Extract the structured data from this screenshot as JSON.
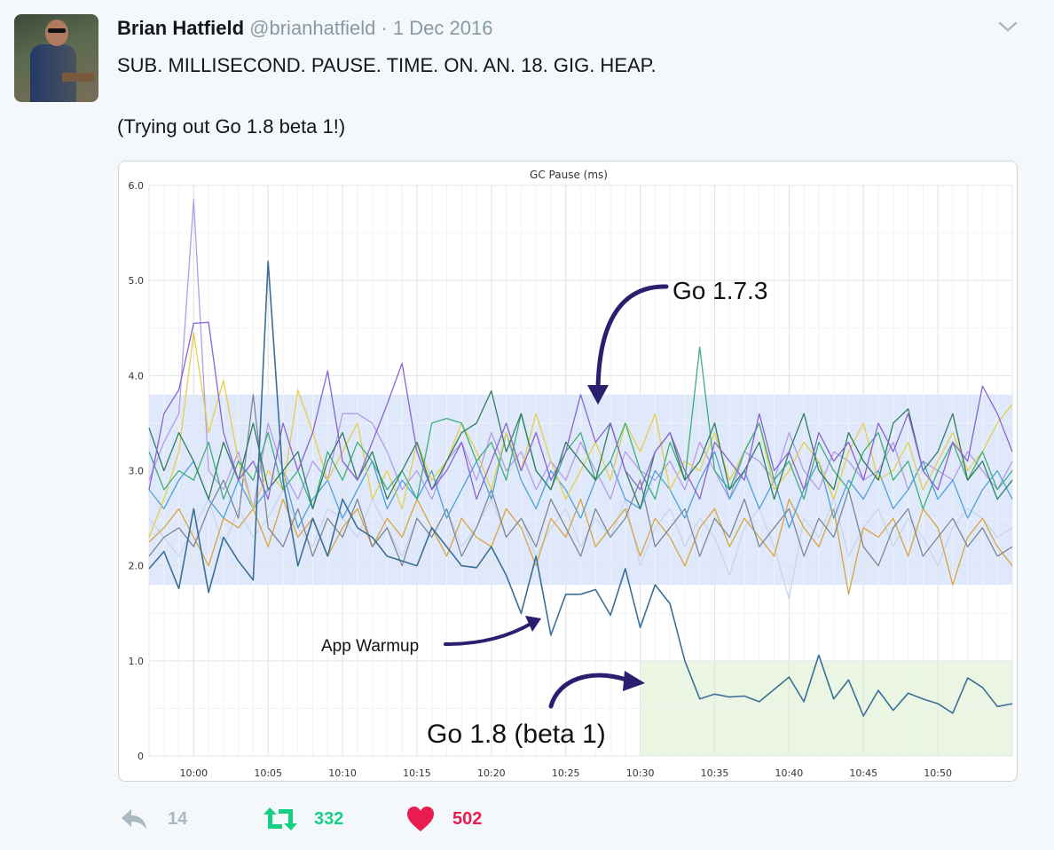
{
  "tweet": {
    "author_name": "Brian Hatfield",
    "handle": "@brianhatfield",
    "separator": "·",
    "date": "1 Dec 2016",
    "text_line1": "SUB. MILLISECOND. PAUSE. TIME. ON. AN. 18. GIG. HEAP.",
    "text_line2": "(Trying out Go 1.8 beta 1!)",
    "menu_icon": "chevron-down-icon"
  },
  "actions": {
    "reply": {
      "icon": "reply-icon",
      "count": "14",
      "color": "#aab8c2"
    },
    "retweet": {
      "icon": "retweet-icon",
      "count": "332",
      "color": "#19cf86"
    },
    "like": {
      "icon": "heart-icon",
      "count": "502",
      "color": "#e81c4f"
    }
  },
  "chart_data": {
    "type": "line",
    "title": "GC Pause (ms)",
    "xlabel": "",
    "ylabel": "",
    "ylim": [
      0,
      6
    ],
    "yticks": [
      "0",
      "1.0",
      "2.0",
      "3.0",
      "4.0",
      "5.0",
      "6.0"
    ],
    "xticks": [
      "10:00",
      "10:05",
      "10:10",
      "10:15",
      "10:20",
      "10:25",
      "10:30",
      "10:35",
      "10:40",
      "10:45",
      "10:50"
    ],
    "xlim": [
      "9:57",
      "10:55"
    ],
    "grid": true,
    "bands": [
      {
        "label": "Go 1.7.3",
        "y": [
          1.8,
          3.8
        ],
        "x": [
          "9:57",
          "10:55"
        ],
        "color": "#dfe9fb"
      },
      {
        "label": "Go 1.8 (beta 1)",
        "y": [
          0,
          1.0
        ],
        "x": [
          "10:30",
          "10:55"
        ],
        "color": "#eaf6e1"
      }
    ],
    "annotations": [
      {
        "text": "Go 1.7.3",
        "target": [
          "10:27",
          3.8
        ]
      },
      {
        "text": "App Warmup",
        "target": [
          "10:23",
          1.4
        ]
      },
      {
        "text": "Go 1.8 (beta 1)",
        "target": [
          "10:30",
          0.8
        ]
      }
    ],
    "x": [
      "9:57",
      "9:58",
      "9:59",
      "10:00",
      "10:01",
      "10:02",
      "10:03",
      "10:04",
      "10:05",
      "10:06",
      "10:07",
      "10:08",
      "10:09",
      "10:10",
      "10:11",
      "10:12",
      "10:13",
      "10:14",
      "10:15",
      "10:16",
      "10:17",
      "10:18",
      "10:19",
      "10:20",
      "10:21",
      "10:22",
      "10:23",
      "10:24",
      "10:25",
      "10:26",
      "10:27",
      "10:28",
      "10:29",
      "10:30",
      "10:31",
      "10:32",
      "10:33",
      "10:34",
      "10:35",
      "10:36",
      "10:37",
      "10:38",
      "10:39",
      "10:40",
      "10:41",
      "10:42",
      "10:43",
      "10:44",
      "10:45",
      "10:46",
      "10:47",
      "10:48",
      "10:49",
      "10:50",
      "10:51",
      "10:52",
      "10:53",
      "10:54",
      "10:55"
    ],
    "series": [
      {
        "color": "#c9d6e8",
        "values": [
          2.5,
          2.3,
          2.1,
          2.4,
          2.7,
          2.2,
          2.6,
          2.3,
          2.5,
          2.8,
          2.4,
          2.2,
          2.6,
          2.5,
          2.3,
          2.7,
          2.4,
          2.1,
          2.5,
          2.3,
          2.6,
          2.2,
          2.4,
          2.7,
          2.3,
          2.5,
          2.1,
          2.4,
          2.6,
          2.2,
          2.5,
          2.3,
          2.7,
          2.0,
          2.4,
          2.6,
          2.2,
          2.5,
          2.3,
          1.9,
          2.4,
          2.6,
          2.2,
          1.65,
          2.5,
          2.3,
          2.7,
          2.1,
          2.4,
          2.6,
          2.2,
          2.5,
          2.3,
          2.0,
          2.4,
          2.6,
          2.5,
          2.3,
          2.4
        ]
      },
      {
        "color": "#b49ce8",
        "values": [
          2.9,
          3.3,
          3.6,
          5.85,
          3.0,
          2.8,
          3.2,
          2.6,
          3.5,
          3.0,
          2.7,
          3.1,
          2.9,
          3.6,
          3.6,
          3.5,
          3.2,
          2.8,
          3.0,
          2.7,
          3.1,
          3.3,
          2.9,
          3.4,
          3.0,
          3.2,
          2.8,
          3.1,
          2.9,
          3.3,
          3.0,
          2.7,
          3.2,
          3.0,
          2.9,
          3.1,
          2.8,
          3.3,
          3.0,
          2.7,
          3.2,
          3.1,
          2.9,
          3.4,
          3.0,
          2.8,
          3.2,
          3.1,
          2.9,
          3.0,
          3.3,
          2.8,
          3.1,
          3.0,
          2.9,
          3.2,
          3.0,
          2.8,
          3.1
        ]
      },
      {
        "color": "#d9a441",
        "values": [
          2.25,
          2.4,
          2.6,
          2.3,
          2.0,
          2.5,
          2.4,
          2.6,
          2.2,
          2.7,
          2.3,
          2.5,
          2.1,
          2.4,
          2.6,
          2.2,
          2.5,
          2.3,
          2.7,
          2.4,
          2.1,
          2.5,
          2.3,
          2.2,
          2.6,
          2.4,
          2.0,
          2.5,
          2.3,
          2.7,
          2.2,
          2.4,
          2.6,
          2.1,
          2.5,
          2.3,
          2.0,
          2.4,
          2.6,
          2.2,
          2.5,
          2.3,
          2.1,
          2.7,
          2.4,
          2.2,
          2.6,
          1.7,
          2.4,
          2.3,
          2.5,
          2.1,
          2.6,
          2.4,
          1.8,
          2.3,
          2.5,
          2.2,
          2.0
        ]
      },
      {
        "color": "#7d8794",
        "values": [
          2.1,
          2.3,
          2.4,
          2.2,
          2.6,
          2.9,
          2.5,
          3.8,
          2.4,
          2.2,
          2.6,
          2.1,
          2.5,
          2.3,
          2.7,
          2.2,
          2.4,
          2.0,
          2.5,
          2.3,
          2.6,
          2.1,
          2.4,
          2.8,
          2.3,
          2.5,
          2.2,
          2.7,
          2.4,
          2.1,
          2.6,
          2.3,
          2.5,
          2.9,
          2.2,
          2.4,
          2.6,
          2.1,
          2.5,
          2.3,
          2.7,
          2.2,
          2.4,
          2.6,
          2.1,
          2.5,
          2.3,
          2.8,
          2.2,
          2.0,
          2.4,
          2.6,
          2.1,
          2.3,
          2.5,
          2.2,
          2.4,
          2.1,
          2.2
        ]
      },
      {
        "color": "#4ea0dc",
        "values": [
          2.8,
          2.6,
          2.9,
          3.1,
          2.7,
          2.5,
          2.9,
          2.6,
          2.8,
          3.0,
          2.4,
          2.7,
          2.9,
          2.5,
          2.8,
          3.1,
          2.6,
          2.9,
          2.7,
          3.0,
          2.5,
          2.8,
          3.1,
          2.7,
          3.4,
          2.9,
          2.6,
          3.0,
          2.8,
          2.5,
          2.9,
          3.1,
          2.7,
          2.6,
          3.0,
          2.8,
          2.5,
          2.9,
          3.2,
          2.7,
          3.0,
          2.6,
          2.9,
          2.4,
          2.8,
          3.1,
          2.5,
          2.9,
          2.7,
          3.0,
          2.6,
          2.8,
          3.1,
          2.7,
          2.9,
          2.5,
          2.8,
          3.0,
          2.7
        ]
      },
      {
        "color": "#e3cf4a",
        "values": [
          2.3,
          2.7,
          3.2,
          4.45,
          3.4,
          3.95,
          3.1,
          2.6,
          3.0,
          2.8,
          3.85,
          3.4,
          2.9,
          3.2,
          3.5,
          2.7,
          3.0,
          2.6,
          3.3,
          2.9,
          3.1,
          3.5,
          3.2,
          2.8,
          3.4,
          3.0,
          3.6,
          3.1,
          2.7,
          3.0,
          3.3,
          2.9,
          3.5,
          3.2,
          3.6,
          2.8,
          3.1,
          3.0,
          3.4,
          2.9,
          3.2,
          3.5,
          2.8,
          3.0,
          3.3,
          3.1,
          2.7,
          3.2,
          3.5,
          2.9,
          3.0,
          3.3,
          2.8,
          3.1,
          3.4,
          3.0,
          3.2,
          3.5,
          3.7
        ]
      },
      {
        "color": "#3fae7a",
        "values": [
          3.2,
          2.8,
          3.0,
          2.9,
          3.3,
          2.7,
          3.1,
          2.9,
          3.4,
          2.8,
          3.0,
          2.6,
          3.2,
          2.9,
          3.3,
          3.1,
          2.8,
          3.0,
          2.7,
          3.5,
          3.55,
          3.5,
          3.1,
          3.3,
          2.9,
          3.6,
          3.0,
          2.8,
          3.2,
          3.4,
          2.9,
          3.1,
          3.5,
          3.0,
          2.7,
          3.3,
          2.9,
          4.3,
          3.0,
          2.8,
          3.2,
          3.5,
          2.9,
          3.1,
          2.7,
          3.3,
          3.0,
          2.8,
          3.2,
          3.4,
          2.9,
          3.1,
          2.6,
          3.0,
          3.3,
          2.9,
          3.2,
          2.8,
          3.0
        ]
      },
      {
        "color": "#2f7d5e",
        "values": [
          3.45,
          3.0,
          3.4,
          3.1,
          2.7,
          3.3,
          2.9,
          3.5,
          2.8,
          3.0,
          3.2,
          2.6,
          3.1,
          3.4,
          2.9,
          3.2,
          2.7,
          3.0,
          3.3,
          2.8,
          3.1,
          3.4,
          3.5,
          3.84,
          3.2,
          3.6,
          3.0,
          2.8,
          3.3,
          3.1,
          2.9,
          3.5,
          3.0,
          2.6,
          3.2,
          3.4,
          2.9,
          3.1,
          3.5,
          2.8,
          3.0,
          3.3,
          2.7,
          3.2,
          3.6,
          3.0,
          2.8,
          3.4,
          3.1,
          2.9,
          3.5,
          3.65,
          3.0,
          3.2,
          3.6,
          2.9,
          3.1,
          2.7,
          2.9
        ]
      },
      {
        "color": "#8a63d2",
        "values": [
          2.8,
          3.6,
          3.85,
          4.55,
          4.56,
          3.4,
          2.9,
          3.1,
          2.7,
          3.5,
          3.0,
          3.4,
          4.05,
          3.1,
          2.9,
          3.3,
          3.7,
          4.13,
          3.2,
          2.8,
          3.0,
          3.3,
          2.7,
          3.1,
          3.5,
          3.0,
          3.4,
          2.9,
          3.2,
          3.8,
          3.3,
          3.5,
          3.0,
          2.8,
          3.2,
          3.4,
          3.0,
          2.7,
          3.3,
          3.1,
          2.9,
          3.6,
          3.0,
          3.2,
          2.8,
          3.4,
          3.1,
          3.3,
          2.9,
          3.5,
          3.2,
          3.6,
          3.0,
          2.8,
          3.3,
          3.1,
          3.89,
          3.6,
          3.2
        ]
      },
      {
        "color": "#3b6f98",
        "values": [
          1.97,
          2.15,
          1.76,
          2.6,
          1.72,
          2.3,
          2.05,
          1.85,
          5.2,
          2.9,
          2.0,
          2.5,
          2.1,
          2.7,
          2.4,
          2.3,
          2.1,
          2.05,
          2.0,
          2.4,
          2.2,
          2.0,
          1.98,
          2.2,
          1.9,
          1.5,
          2.1,
          1.27,
          1.7,
          1.7,
          1.75,
          1.48,
          1.97,
          1.35,
          1.8,
          1.6,
          1.0,
          0.6,
          0.65,
          0.62,
          0.63,
          0.57,
          0.7,
          0.83,
          0.57,
          1.06,
          0.6,
          0.8,
          0.42,
          0.69,
          0.48,
          0.66,
          0.6,
          0.55,
          0.45,
          0.82,
          0.72,
          0.52,
          0.55
        ]
      }
    ]
  }
}
